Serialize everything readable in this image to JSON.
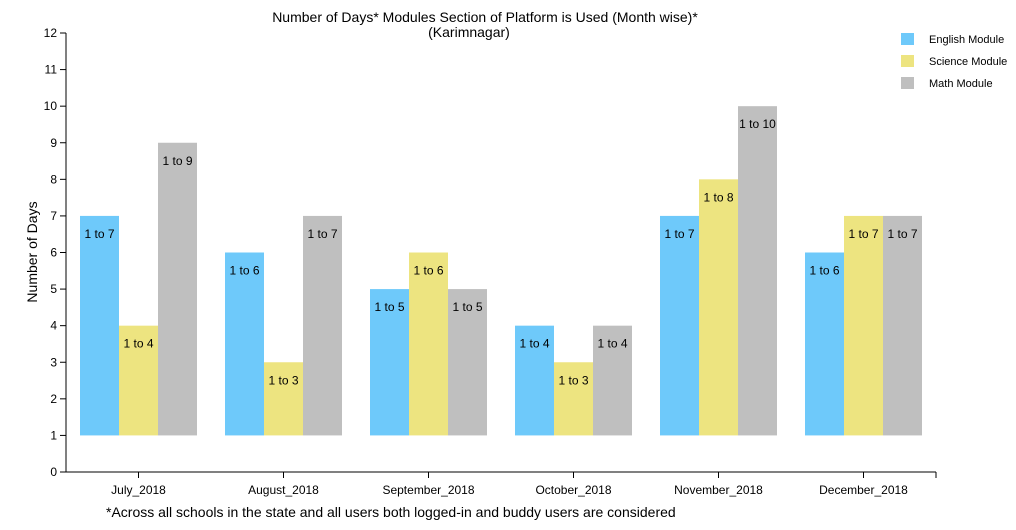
{
  "chart_data": {
    "type": "bar",
    "title": "Number of Days* Modules Section of Platform is Used (Month wise)*",
    "subtitle": "(Karimnagar)",
    "ylabel": "Number of Days",
    "xlabel": "",
    "ylim": [
      0,
      12
    ],
    "yticks": [
      0,
      1,
      2,
      3,
      4,
      5,
      6,
      7,
      8,
      9,
      10,
      11,
      12
    ],
    "bar_base": 1,
    "categories": [
      "July_2018",
      "August_2018",
      "September_2018",
      "October_2018",
      "November_2018",
      "December_2018"
    ],
    "series": [
      {
        "name": "English Module",
        "color": "#6ec9fa",
        "values": [
          7,
          6,
          5,
          4,
          7,
          6
        ],
        "labels": [
          "1 to 7",
          "1 to 6",
          "1 to 5",
          "1 to 4",
          "1 to 7",
          "1 to 6"
        ]
      },
      {
        "name": "Science Module",
        "color": "#ede480",
        "values": [
          4,
          3,
          6,
          3,
          8,
          7
        ],
        "labels": [
          "1 to 4",
          "1 to 3",
          "1 to 6",
          "1 to 3",
          "1 to 8",
          "1 to 7"
        ]
      },
      {
        "name": "Math Module",
        "color": "#bfbfbf",
        "values": [
          9,
          7,
          5,
          4,
          10,
          7
        ],
        "labels": [
          "1 to 9",
          "1 to 7",
          "1 to 5",
          "1 to 4",
          "1 to 10",
          "1 to 7"
        ]
      }
    ],
    "legend_position": "top-right",
    "grid": false,
    "footnote": "*Across all schools in the state and all users both logged-in and buddy users are considered"
  }
}
